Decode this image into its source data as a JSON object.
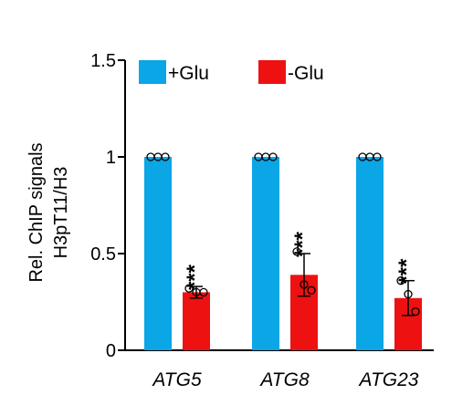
{
  "chart_data": {
    "type": "bar",
    "categories": [
      "ATG5",
      "ATG8",
      "ATG23"
    ],
    "ylabel_line1": "Rel. ChIP signals",
    "ylabel_line2": "H3pT11/H3",
    "ylim": [
      0,
      1.5
    ],
    "yticks": [
      "0",
      "0.5",
      "1",
      "1.5"
    ],
    "legend_position": "top",
    "series": [
      {
        "name": "+Glu",
        "color": "#0aa6e6",
        "values": [
          1.0,
          1.0,
          1.0
        ],
        "errors": [
          0,
          0,
          0
        ],
        "points": [
          [
            1.0,
            1.0,
            1.0
          ],
          [
            1.0,
            1.0,
            1.0
          ],
          [
            1.0,
            1.0,
            1.0
          ]
        ]
      },
      {
        "name": "-Glu",
        "color": "#ee1111",
        "values": [
          0.3,
          0.39,
          0.27
        ],
        "errors": [
          0.03,
          0.11,
          0.09
        ],
        "points": [
          [
            0.32,
            0.3,
            0.3
          ],
          [
            0.51,
            0.34,
            0.31
          ],
          [
            0.36,
            0.29,
            0.2
          ]
        ],
        "significance": [
          "***",
          "***",
          "***"
        ]
      }
    ]
  }
}
